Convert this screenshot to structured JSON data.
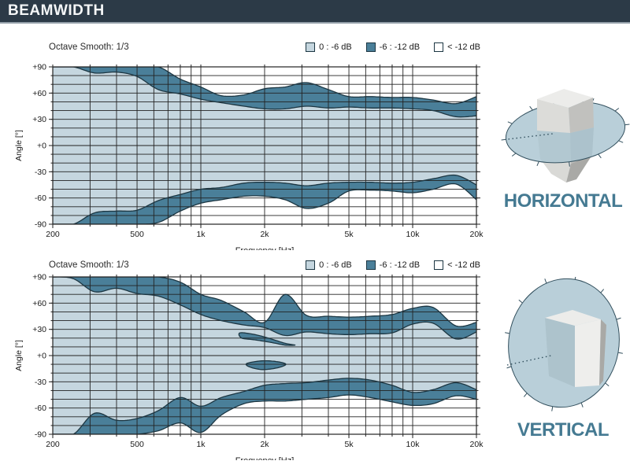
{
  "header": {
    "title": "BEAMWIDTH"
  },
  "colors": {
    "header_bg": "#2c3a47",
    "header_underline": "#95a1aa",
    "band_0_6": "#c5d6df",
    "band_6_12": "#4a7f99",
    "below_12": "#ffffff",
    "outline": "#1c3642",
    "grid": "#222222",
    "accent": "#457a92",
    "disc_fill": "#a7c3d0",
    "disc_stroke": "#33505e",
    "box_top": "#ececea",
    "box_front": "#dcdcd9",
    "box_side": "#c1c1be",
    "box_bright": "#eeeeec",
    "box_dark": "#a9a9a6",
    "box_lower_front": "#d9d9d6",
    "box_lower_side": "#bfbfbc"
  },
  "legend": {
    "items": [
      {
        "label": "0 : -6 dB",
        "type": "band_0_6"
      },
      {
        "label": "-6 : -12 dB",
        "type": "band_6_12"
      },
      {
        "label": "< -12 dB",
        "type": "below_12"
      }
    ]
  },
  "side_labels": {
    "horizontal": "HORIZONTAL",
    "vertical": "VERTICAL"
  },
  "chart_data": [
    {
      "type": "area",
      "name": "horizontal-beamwidth",
      "title": "Octave Smooth: 1/3",
      "xlabel": "Frequency [Hz]",
      "ylabel": "Angle [°]",
      "xscale": "log",
      "xlim": [
        200,
        20000
      ],
      "ylim": [
        -90,
        90
      ],
      "x_ticks": [
        [
          200,
          "200"
        ],
        [
          500,
          "500"
        ],
        [
          1000,
          "1k"
        ],
        [
          2000,
          "2k"
        ],
        [
          5000,
          "5k"
        ],
        [
          10000,
          "10k"
        ],
        [
          20000,
          "20k"
        ]
      ],
      "y_ticks": [
        [
          90,
          "+90"
        ],
        [
          60,
          "+60"
        ],
        [
          30,
          "+30"
        ],
        [
          0,
          "+0"
        ],
        [
          -30,
          "-30"
        ],
        [
          -60,
          "-60"
        ],
        [
          -90,
          "-90"
        ]
      ],
      "x_grid": [
        200,
        300,
        400,
        500,
        600,
        700,
        800,
        900,
        1000,
        2000,
        3000,
        4000,
        5000,
        6000,
        7000,
        8000,
        9000,
        10000,
        20000
      ],
      "y_grid_step": 10,
      "x": [
        200,
        250,
        315,
        400,
        500,
        630,
        800,
        1000,
        1250,
        1600,
        2000,
        2500,
        3150,
        4000,
        5000,
        6300,
        8000,
        10000,
        12500,
        16000,
        20000
      ],
      "series": [
        {
          "name": "upper -6 dB boundary",
          "values": [
            90,
            90,
            83,
            84,
            79,
            64,
            59,
            53,
            49,
            45,
            42,
            42,
            45,
            43,
            44,
            43,
            43,
            42,
            40,
            33,
            34
          ]
        },
        {
          "name": "upper -12 dB boundary",
          "values": [
            90,
            90,
            90,
            90,
            90,
            90,
            76,
            67,
            57,
            58,
            65,
            67,
            72,
            64,
            56,
            56,
            55,
            55,
            52,
            48,
            56
          ]
        },
        {
          "name": "lower -6 dB boundary",
          "values": [
            -90,
            -90,
            -77,
            -75,
            -74,
            -63,
            -56,
            -50,
            -48,
            -43,
            -42,
            -43,
            -46,
            -43,
            -42,
            -42,
            -43,
            -42,
            -38,
            -34,
            -45
          ]
        },
        {
          "name": "lower -12 dB boundary",
          "values": [
            -90,
            -90,
            -90,
            -90,
            -90,
            -88,
            -75,
            -66,
            -62,
            -58,
            -58,
            -62,
            -72,
            -66,
            -52,
            -51,
            -52,
            -54,
            -50,
            -44,
            -62
          ]
        }
      ],
      "islands": []
    },
    {
      "type": "area",
      "name": "vertical-beamwidth",
      "title": "Octave Smooth: 1/3",
      "xlabel": "Frequency [Hz]",
      "ylabel": "Angle [°]",
      "xscale": "log",
      "xlim": [
        200,
        20000
      ],
      "ylim": [
        -90,
        90
      ],
      "x_ticks": [
        [
          200,
          "200"
        ],
        [
          500,
          "500"
        ],
        [
          1000,
          "1k"
        ],
        [
          2000,
          "2k"
        ],
        [
          5000,
          "5k"
        ],
        [
          10000,
          "10k"
        ],
        [
          20000,
          "20k"
        ]
      ],
      "y_ticks": [
        [
          90,
          "+90"
        ],
        [
          60,
          "+60"
        ],
        [
          30,
          "+30"
        ],
        [
          0,
          "+0"
        ],
        [
          -30,
          "-30"
        ],
        [
          -60,
          "-60"
        ],
        [
          -90,
          "-90"
        ]
      ],
      "x_grid": [
        200,
        300,
        400,
        500,
        600,
        700,
        800,
        900,
        1000,
        2000,
        3000,
        4000,
        5000,
        6000,
        7000,
        8000,
        9000,
        10000,
        20000
      ],
      "y_grid_step": 10,
      "x": [
        200,
        250,
        315,
        400,
        500,
        630,
        800,
        1000,
        1250,
        1600,
        2000,
        2500,
        3150,
        4000,
        5000,
        6300,
        8000,
        10000,
        12500,
        16000,
        20000
      ],
      "series": [
        {
          "name": "upper -6 dB boundary",
          "values": [
            90,
            88,
            73,
            77,
            71,
            68,
            58,
            47,
            40,
            35,
            32,
            23,
            27,
            25,
            24,
            25,
            26,
            36,
            37,
            19,
            27
          ]
        },
        {
          "name": "upper -12 dB boundary",
          "values": [
            90,
            90,
            90,
            90,
            90,
            90,
            84,
            70,
            63,
            50,
            38,
            70,
            46,
            45,
            44,
            45,
            47,
            54,
            55,
            34,
            38
          ]
        },
        {
          "name": "lower -6 dB boundary",
          "values": [
            -90,
            -90,
            -66,
            -74,
            -72,
            -63,
            -48,
            -58,
            -48,
            -41,
            -34,
            -32,
            -31,
            -28,
            -26,
            -28,
            -34,
            -42,
            -39,
            -31,
            -39
          ]
        },
        {
          "name": "lower -12 dB boundary",
          "values": [
            -90,
            -90,
            -90,
            -90,
            -90,
            -86,
            -77,
            -88,
            -68,
            -55,
            -52,
            -52,
            -50,
            -48,
            -45,
            -48,
            -53,
            -57,
            -55,
            -46,
            -50
          ]
        }
      ],
      "islands": [
        {
          "name": "-6 to -12 dB island upper",
          "points": [
            [
              1530,
              26
            ],
            [
              1800,
              24
            ],
            [
              2150,
              19
            ],
            [
              2500,
              14
            ],
            [
              2780,
              12
            ],
            [
              2500,
              12
            ],
            [
              2150,
              15
            ],
            [
              1800,
              18
            ],
            [
              1560,
              20
            ]
          ]
        },
        {
          "name": "-6 to -12 dB island lower",
          "points": [
            [
              1650,
              -9
            ],
            [
              1950,
              -6
            ],
            [
              2300,
              -7
            ],
            [
              2520,
              -10
            ],
            [
              2300,
              -14
            ],
            [
              1950,
              -16
            ],
            [
              1700,
              -13
            ]
          ]
        }
      ]
    }
  ]
}
